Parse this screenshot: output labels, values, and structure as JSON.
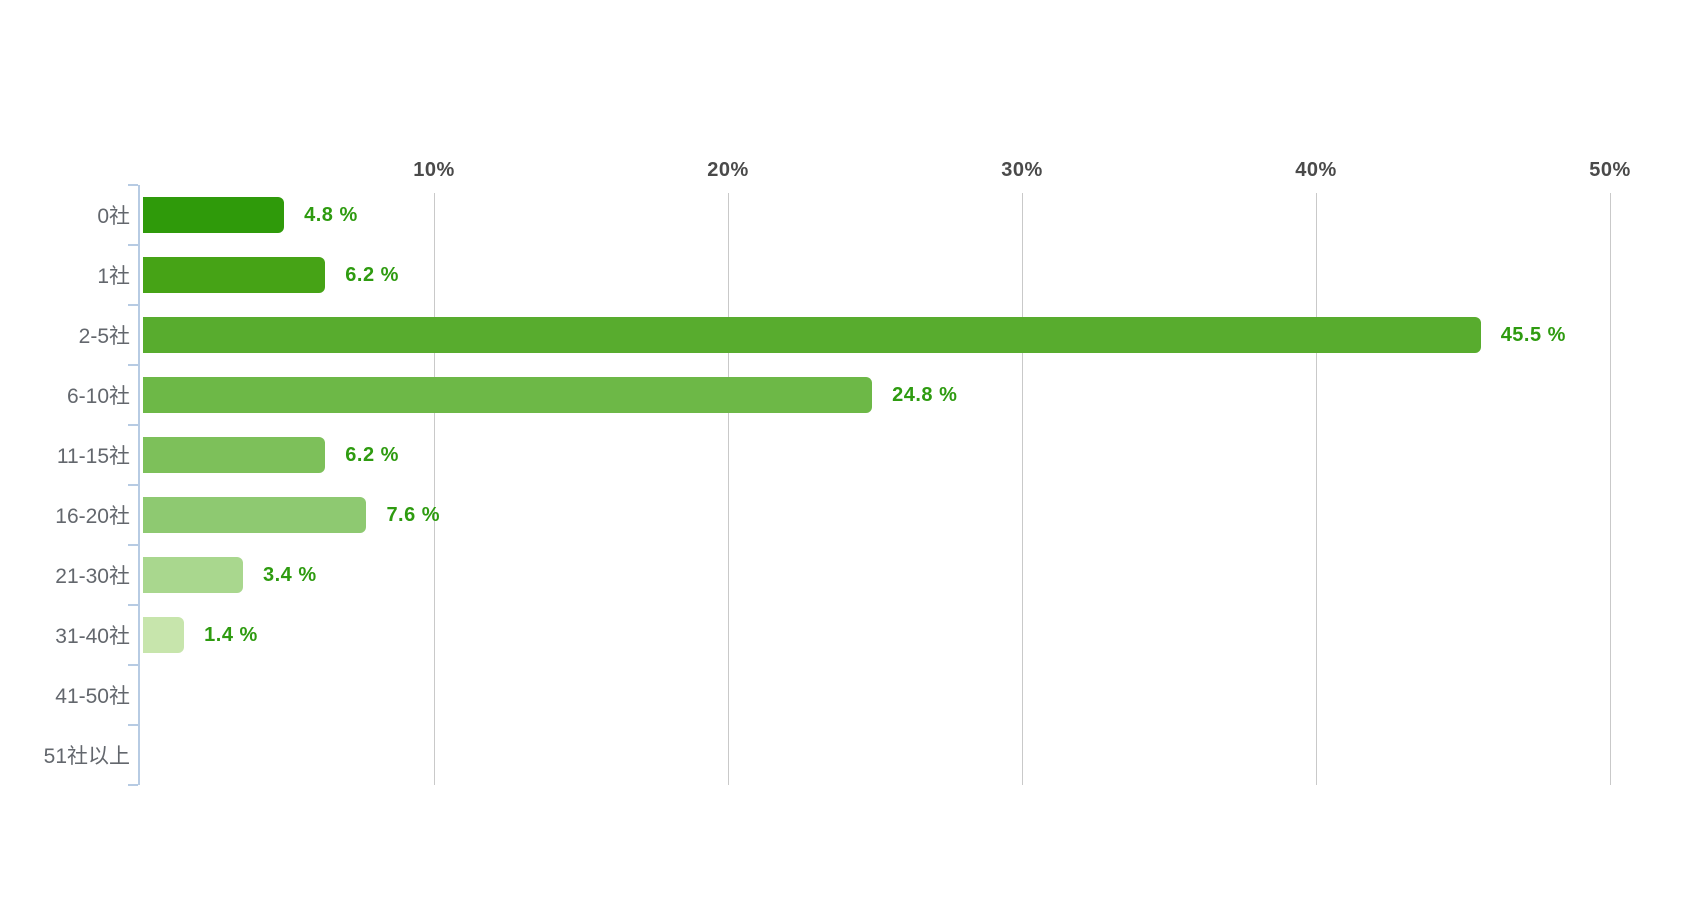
{
  "chart_data": {
    "type": "bar",
    "orientation": "horizontal",
    "title": "",
    "legend": "none",
    "grid": "vertical",
    "categories": [
      "0社",
      "1社",
      "2-5社",
      "6-10社",
      "11-15社",
      "16-20社",
      "21-30社",
      "31-40社",
      "41-50社",
      "51社以上"
    ],
    "values": [
      4.8,
      6.2,
      45.5,
      24.8,
      6.2,
      7.6,
      3.4,
      1.4,
      0,
      0
    ],
    "value_labels": [
      "4.8 %",
      "6.2 %",
      "45.5 %",
      "24.8 %",
      "6.2 %",
      "7.6 %",
      "3.4 %",
      "1.4 %",
      "",
      ""
    ],
    "bar_colors": [
      "#2f9a0a",
      "#46a316",
      "#58ac2e",
      "#6db847",
      "#7dc05a",
      "#8ec971",
      "#a9d78e",
      "#c7e5ac",
      "#d9eec6",
      "#e8f5dc"
    ],
    "x_ticks": [
      {
        "label": "10%",
        "value": 10
      },
      {
        "label": "20%",
        "value": 20
      },
      {
        "label": "30%",
        "value": 30
      },
      {
        "label": "40%",
        "value": 40
      },
      {
        "label": "50%",
        "value": 50
      }
    ],
    "xlim": [
      0,
      50
    ],
    "unit_suffix": " %"
  },
  "style": {
    "background": "#ffffff",
    "value_label_color": "#2e9b10",
    "category_label_color": "#63676d",
    "axis_tick_label_color": "#4a4a4a",
    "gridline_color": "#c9c9c9",
    "axis_line_color": "#b7cbe3"
  }
}
